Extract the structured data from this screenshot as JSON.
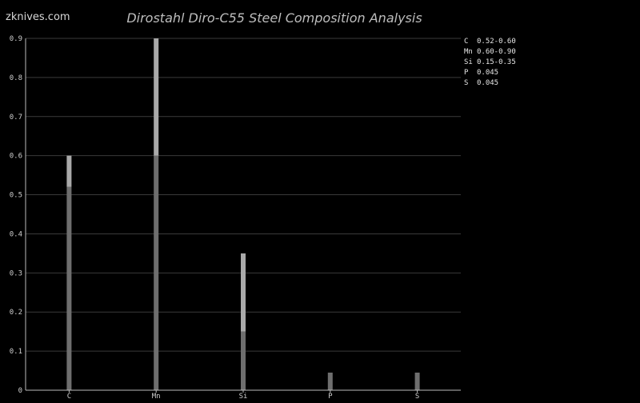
{
  "brand": "zknives.com",
  "chart_data": {
    "type": "bar",
    "title": "Dirostahl Diro-C55 Steel Composition Analysis",
    "xlabel": "",
    "ylabel": "",
    "ylim": [
      0,
      0.9
    ],
    "yticks": [
      "0",
      "0.1",
      "0.2",
      "0.3",
      "0.4",
      "0.5",
      "0.6",
      "0.7",
      "0.8",
      "0.9"
    ],
    "categories": [
      "C",
      "Mn",
      "Si",
      "P",
      "S"
    ],
    "ranges": [
      {
        "min": 0.52,
        "max": 0.6
      },
      {
        "min": 0.6,
        "max": 0.9
      },
      {
        "min": 0.15,
        "max": 0.35
      },
      {
        "min": null,
        "max": 0.045
      },
      {
        "min": null,
        "max": 0.045
      }
    ],
    "legend_position": "top-right",
    "legend": [
      {
        "element": "C",
        "value": "0.52-0.60"
      },
      {
        "element": "Mn",
        "value": "0.60-0.90"
      },
      {
        "element": "Si",
        "value": "0.15-0.35"
      },
      {
        "element": "P",
        "value": "0.045"
      },
      {
        "element": "S",
        "value": "0.045"
      }
    ],
    "grid": true
  },
  "colors": {
    "background": "#000000",
    "bar_base": "#6e6e6e",
    "bar_range": "#a9a9a9"
  }
}
